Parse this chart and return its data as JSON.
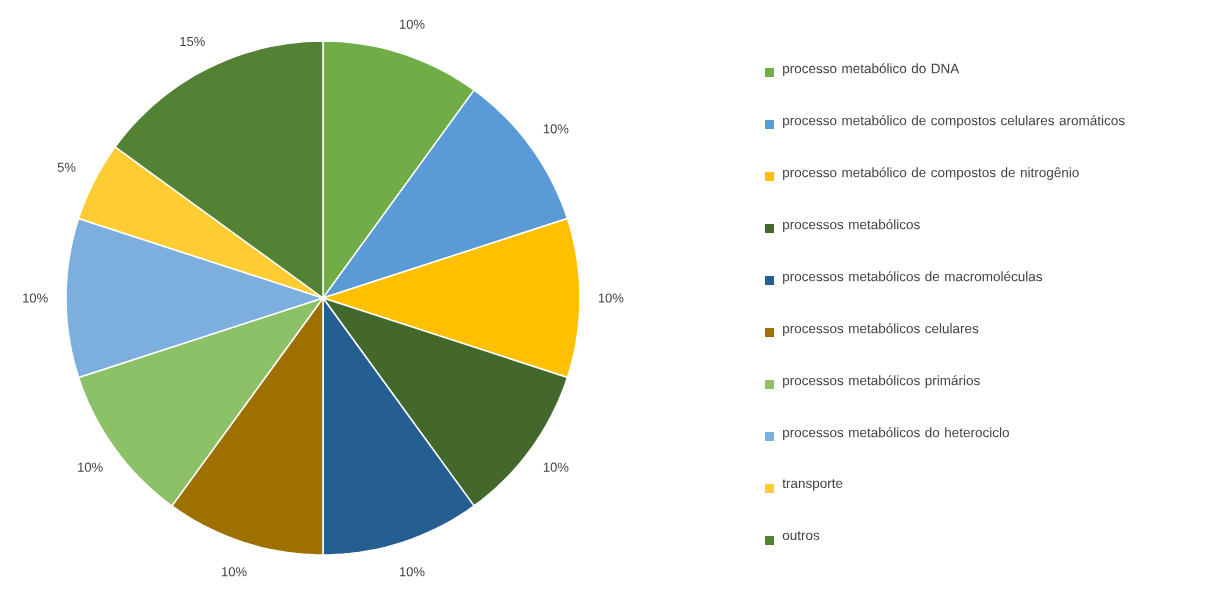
{
  "chart_data": {
    "type": "pie",
    "categories": [
      "processo metabólico do DNA",
      "processo metabólico de compostos celulares aromáticos",
      "processo metabólico de compostos de nitrogênio",
      "processos metabólicos",
      "processos metabólicos de macromoléculas",
      "processos metabólicos celulares",
      "processos metabólicos primários",
      "processos metabólicos do heterociclo",
      "transporte",
      "outros"
    ],
    "values": [
      10,
      10,
      10,
      10,
      10,
      10,
      10,
      10,
      5,
      15
    ],
    "value_labels": [
      "10%",
      "10%",
      "10%",
      "10%",
      "10%",
      "10%",
      "10%",
      "10%",
      "5%",
      "15%"
    ],
    "colors": [
      "#70ad47",
      "#5b9bd5",
      "#ffc000",
      "#43682b",
      "#255e91",
      "#9e7000",
      "#8cc168",
      "#7cafdd",
      "#ffcd33",
      "#548235"
    ],
    "legend": "right"
  }
}
